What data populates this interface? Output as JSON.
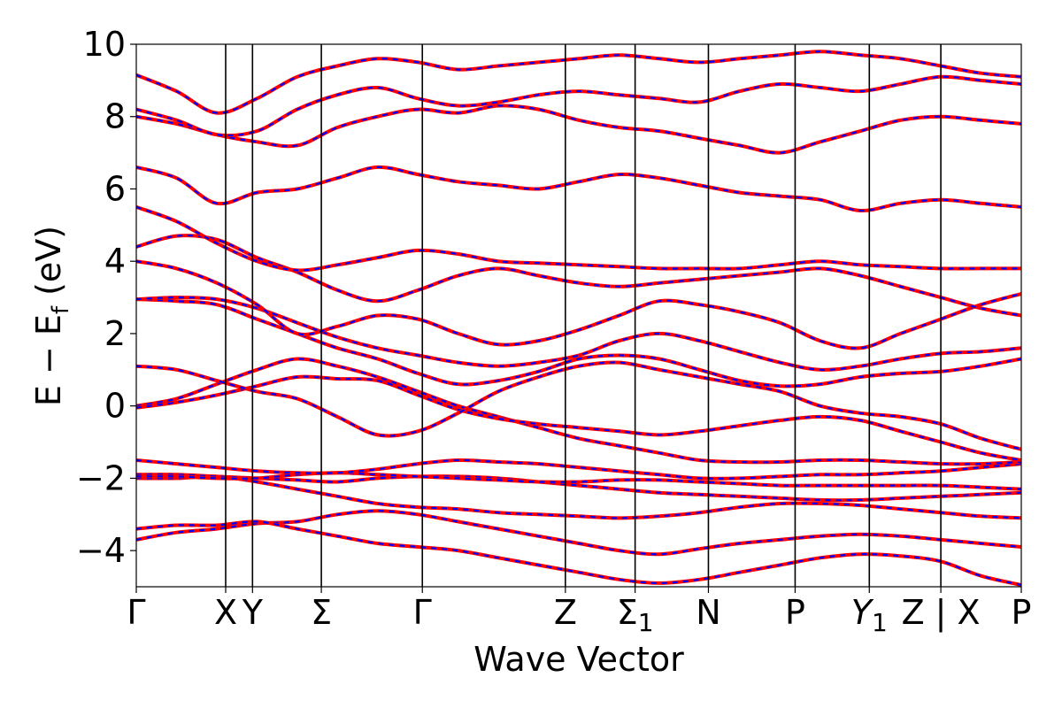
{
  "chart_data": {
    "type": "line",
    "title": "",
    "xlabel": "Wave Vector",
    "ylabel": "E − E_f (eV)",
    "ylabel_parts": {
      "main": "E − E",
      "sub": "f",
      "unit": " (eV)"
    },
    "ylim": [
      -5,
      10
    ],
    "xlim": [
      0,
      9.9
    ],
    "grid": false,
    "y_ticks": [
      -4,
      -2,
      0,
      2,
      4,
      6,
      8,
      10
    ],
    "y_tick_labels": [
      "−4",
      "−2",
      "0",
      "2",
      "4",
      "6",
      "8",
      "10"
    ],
    "k_points": [
      {
        "x": 0.0,
        "label": "Γ",
        "sub": ""
      },
      {
        "x": 1.0,
        "label": "X",
        "sub": ""
      },
      {
        "x": 1.3,
        "label": "Y",
        "sub": ""
      },
      {
        "x": 2.07,
        "label": "Σ",
        "sub": ""
      },
      {
        "x": 3.2,
        "label": "Γ",
        "sub": ""
      },
      {
        "x": 4.8,
        "label": "Z",
        "sub": ""
      },
      {
        "x": 5.58,
        "label": "Σ",
        "sub": "1"
      },
      {
        "x": 6.4,
        "label": "N",
        "sub": ""
      },
      {
        "x": 7.37,
        "label": "P",
        "sub": ""
      },
      {
        "x": 8.2,
        "label": "Y",
        "sub": "1",
        "italic": true
      },
      {
        "x": 9.0,
        "label": "Z | X",
        "sub": ""
      },
      {
        "x": 9.9,
        "label": "P",
        "sub": ""
      }
    ],
    "series": [
      {
        "style": "solid",
        "color": "#ff0000"
      },
      {
        "style": "dashed",
        "color": "#0000ff"
      }
    ],
    "bands": [
      [
        -3.7,
        -3.5,
        -3.4,
        -3.25,
        -3.2,
        -3.0,
        -2.9,
        -3.0,
        -3.2,
        -3.4,
        -3.6,
        -3.8,
        -4.0,
        -4.1,
        -3.95,
        -3.8,
        -3.7,
        -3.6,
        -3.55,
        -3.6,
        -3.7,
        -3.8,
        -3.9
      ],
      [
        -3.4,
        -3.3,
        -3.3,
        -3.2,
        -3.4,
        -3.6,
        -3.8,
        -3.9,
        -4.0,
        -4.2,
        -4.4,
        -4.6,
        -4.8,
        -4.9,
        -4.8,
        -4.6,
        -4.4,
        -4.2,
        -4.1,
        -4.15,
        -4.3,
        -4.7,
        -4.95
      ],
      [
        -2.0,
        -2.0,
        -1.95,
        -2.1,
        -2.3,
        -2.5,
        -2.7,
        -2.8,
        -2.85,
        -2.95,
        -3.0,
        -3.05,
        -3.1,
        -3.05,
        -2.95,
        -2.8,
        -2.7,
        -2.7,
        -2.75,
        -2.85,
        -2.95,
        -3.05,
        -3.1
      ],
      [
        -1.9,
        -1.9,
        -1.95,
        -2.0,
        -2.05,
        -2.1,
        -2.0,
        -1.95,
        -1.95,
        -2.0,
        -2.1,
        -2.2,
        -2.3,
        -2.4,
        -2.45,
        -2.5,
        -2.55,
        -2.6,
        -2.6,
        -2.55,
        -2.5,
        -2.45,
        -2.4
      ],
      [
        -1.95,
        -1.95,
        -2.0,
        -2.0,
        -1.9,
        -1.85,
        -1.9,
        -1.95,
        -2.0,
        -2.05,
        -2.1,
        -2.1,
        -2.05,
        -2.05,
        -2.1,
        -2.15,
        -2.2,
        -2.2,
        -2.2,
        -2.2,
        -2.2,
        -2.25,
        -2.3
      ],
      [
        -1.5,
        -1.6,
        -1.7,
        -1.8,
        -1.85,
        -1.85,
        -1.75,
        -1.6,
        -1.5,
        -1.55,
        -1.6,
        -1.7,
        -1.8,
        -1.9,
        -2.0,
        -2.0,
        -1.95,
        -1.9,
        -1.9,
        -1.85,
        -1.8,
        -1.7,
        -1.6
      ],
      [
        0.0,
        0.2,
        0.6,
        1.0,
        1.3,
        1.1,
        0.8,
        0.4,
        0.0,
        -0.3,
        -0.6,
        -0.9,
        -1.1,
        -1.3,
        -1.5,
        -1.55,
        -1.55,
        -1.5,
        -1.5,
        -1.55,
        -1.6,
        -1.6,
        -1.55
      ],
      [
        -0.05,
        0.1,
        0.3,
        0.55,
        0.8,
        0.75,
        0.7,
        0.3,
        -0.1,
        -0.35,
        -0.5,
        -0.6,
        -0.7,
        -0.8,
        -0.7,
        -0.55,
        -0.4,
        -0.3,
        -0.4,
        -0.7,
        -1.0,
        -1.3,
        -1.5
      ],
      [
        1.1,
        1.0,
        0.7,
        0.4,
        0.2,
        -0.3,
        -0.8,
        -0.7,
        -0.2,
        0.4,
        0.8,
        1.1,
        1.2,
        1.0,
        0.8,
        0.6,
        0.4,
        0.0,
        -0.2,
        -0.3,
        -0.5,
        -0.9,
        -1.2
      ],
      [
        2.95,
        2.9,
        2.8,
        2.4,
        2.0,
        1.6,
        1.3,
        0.9,
        0.6,
        0.7,
        0.95,
        1.3,
        1.4,
        1.3,
        1.0,
        0.7,
        0.55,
        0.6,
        0.8,
        0.9,
        0.95,
        1.1,
        1.3
      ],
      [
        2.95,
        3.0,
        2.95,
        2.7,
        2.3,
        1.9,
        1.6,
        1.4,
        1.2,
        1.1,
        1.2,
        1.4,
        1.8,
        2.0,
        1.8,
        1.5,
        1.2,
        1.0,
        1.1,
        1.3,
        1.45,
        1.5,
        1.6
      ],
      [
        4.0,
        3.8,
        3.4,
        2.8,
        2.0,
        2.2,
        2.5,
        2.4,
        2.0,
        1.7,
        1.8,
        2.1,
        2.5,
        2.9,
        2.8,
        2.6,
        2.3,
        1.8,
        1.6,
        2.0,
        2.4,
        2.8,
        3.1
      ],
      [
        4.4,
        4.7,
        4.6,
        4.1,
        3.7,
        3.2,
        2.9,
        3.2,
        3.6,
        3.8,
        3.6,
        3.4,
        3.3,
        3.4,
        3.5,
        3.6,
        3.7,
        3.8,
        3.6,
        3.3,
        3.0,
        2.7,
        2.5
      ],
      [
        5.5,
        5.1,
        4.5,
        4.0,
        3.75,
        3.9,
        4.1,
        4.3,
        4.2,
        4.0,
        3.95,
        3.9,
        3.85,
        3.8,
        3.8,
        3.8,
        3.9,
        4.0,
        3.9,
        3.85,
        3.8,
        3.8,
        3.8
      ],
      [
        6.6,
        6.3,
        5.6,
        5.9,
        6.0,
        6.3,
        6.6,
        6.4,
        6.2,
        6.1,
        6.0,
        6.2,
        6.4,
        6.3,
        6.1,
        5.9,
        5.8,
        5.7,
        5.4,
        5.6,
        5.7,
        5.6,
        5.5
      ],
      [
        8.0,
        7.8,
        7.5,
        7.3,
        7.2,
        7.7,
        8.0,
        8.2,
        8.1,
        8.3,
        8.2,
        7.9,
        7.7,
        7.6,
        7.4,
        7.2,
        7.0,
        7.3,
        7.6,
        7.9,
        8.0,
        7.9,
        7.8
      ],
      [
        8.2,
        7.9,
        7.5,
        7.6,
        8.2,
        8.6,
        8.8,
        8.5,
        8.3,
        8.4,
        8.6,
        8.7,
        8.6,
        8.5,
        8.4,
        8.7,
        8.9,
        8.8,
        8.7,
        8.9,
        9.1,
        9.0,
        8.9
      ],
      [
        9.15,
        8.7,
        8.1,
        8.5,
        9.1,
        9.4,
        9.6,
        9.5,
        9.3,
        9.4,
        9.5,
        9.6,
        9.7,
        9.6,
        9.5,
        9.6,
        9.7,
        9.8,
        9.7,
        9.6,
        9.4,
        9.2,
        9.1
      ]
    ]
  }
}
